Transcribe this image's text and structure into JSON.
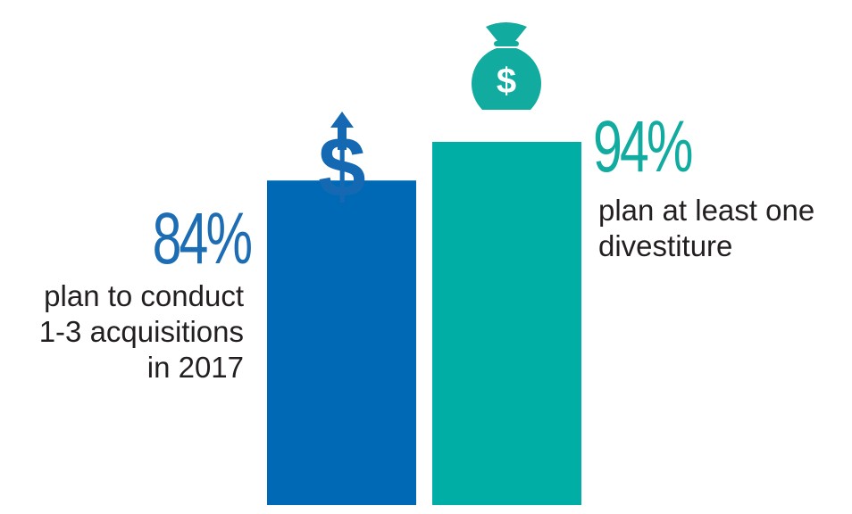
{
  "colors": {
    "left_bar": "#0069b5",
    "right_bar": "#00aea5",
    "text": "#231f20"
  },
  "icons": {
    "left": "dollar-up-arrow-icon",
    "right": "money-bag-icon"
  },
  "chart_data": {
    "type": "bar",
    "categories": [
      "plan to conduct 1-3 acquisitions in 2017",
      "plan at least one divestiture"
    ],
    "values": [
      84,
      94
    ],
    "value_labels": [
      "84%",
      "94%"
    ],
    "ylim": [
      0,
      100
    ],
    "grid": false,
    "legend": "none"
  },
  "labels": {
    "left": {
      "value": "84%",
      "lines": [
        "plan to conduct",
        "1-3 acquisitions",
        "in 2017"
      ]
    },
    "right": {
      "value": "94%",
      "lines": [
        "plan at least one",
        "divestiture"
      ]
    }
  }
}
